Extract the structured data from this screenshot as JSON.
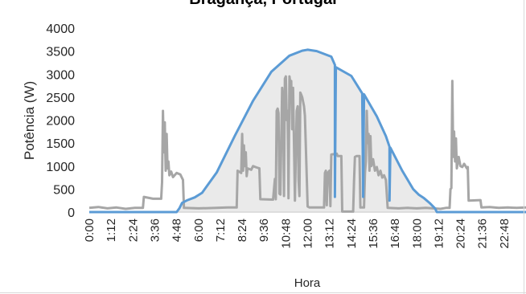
{
  "chart_data": {
    "type": "line",
    "title": "Bragança, Portugal",
    "xlabel": "Hora",
    "ylabel": "Potência (W)",
    "ylim": [
      0,
      4000
    ],
    "yticks": [
      0,
      500,
      1000,
      1500,
      2000,
      2500,
      3000,
      3500,
      4000
    ],
    "x_range_hours": [
      0,
      24
    ],
    "xtick_labels": [
      "0:00",
      "1:12",
      "2:24",
      "3:36",
      "4:48",
      "6:00",
      "7:12",
      "8:24",
      "9:36",
      "10:48",
      "12:00",
      "13:12",
      "14:24",
      "15:36",
      "16:48",
      "18:00",
      "19:12",
      "20:24",
      "21:36",
      "22:48"
    ],
    "grid": "none",
    "legend": "none",
    "series": [
      {
        "color": "#5b9bd5",
        "fill": "#d9d9d9",
        "points": [
          [
            0,
            0
          ],
          [
            4.8,
            0
          ],
          [
            4.95,
            80
          ],
          [
            5.1,
            200
          ],
          [
            5.4,
            260
          ],
          [
            5.8,
            320
          ],
          [
            6.2,
            420
          ],
          [
            7,
            860
          ],
          [
            8,
            1660
          ],
          [
            9,
            2420
          ],
          [
            10,
            3050
          ],
          [
            11,
            3400
          ],
          [
            11.7,
            3510
          ],
          [
            12,
            3530
          ],
          [
            12.5,
            3500
          ],
          [
            13.3,
            3380
          ],
          [
            13.5,
            3200
          ],
          [
            13.5,
            330
          ],
          [
            13.55,
            3150
          ],
          [
            14.4,
            2960
          ],
          [
            15,
            2580
          ],
          [
            15.05,
            330
          ],
          [
            15.1,
            2560
          ],
          [
            15.8,
            2080
          ],
          [
            16.3,
            1650
          ],
          [
            16.5,
            1420
          ],
          [
            16.5,
            250
          ],
          [
            16.55,
            1400
          ],
          [
            17.2,
            900
          ],
          [
            17.8,
            500
          ],
          [
            18.1,
            380
          ],
          [
            18.4,
            300
          ],
          [
            18.7,
            200
          ],
          [
            19,
            80
          ],
          [
            19.1,
            0
          ],
          [
            24,
            0
          ]
        ]
      },
      {
        "color": "#a6a6a6",
        "points": [
          [
            0,
            90
          ],
          [
            0.5,
            110
          ],
          [
            1,
            80
          ],
          [
            1.5,
            100
          ],
          [
            2,
            70
          ],
          [
            2.5,
            90
          ],
          [
            2.95,
            90
          ],
          [
            3,
            330
          ],
          [
            3.5,
            290
          ],
          [
            3.95,
            290
          ],
          [
            4,
            650
          ],
          [
            4.05,
            2200
          ],
          [
            4.1,
            1300
          ],
          [
            4.15,
            1950
          ],
          [
            4.2,
            900
          ],
          [
            4.25,
            1700
          ],
          [
            4.3,
            950
          ],
          [
            4.35,
            1100
          ],
          [
            4.4,
            800
          ],
          [
            4.5,
            880
          ],
          [
            4.6,
            760
          ],
          [
            4.8,
            850
          ],
          [
            5.0,
            820
          ],
          [
            5.15,
            700
          ],
          [
            5.2,
            90
          ],
          [
            6,
            80
          ],
          [
            7,
            90
          ],
          [
            7.6,
            100
          ],
          [
            8.1,
            100
          ],
          [
            8.15,
            900
          ],
          [
            8.35,
            850
          ],
          [
            8.4,
            1700
          ],
          [
            8.45,
            900
          ],
          [
            8.5,
            1450
          ],
          [
            8.55,
            1000
          ],
          [
            8.6,
            1300
          ],
          [
            8.65,
            780
          ],
          [
            8.7,
            950
          ],
          [
            8.9,
            920
          ],
          [
            9,
            1000
          ],
          [
            9.2,
            970
          ],
          [
            9.35,
            950
          ],
          [
            9.4,
            280
          ],
          [
            10.1,
            270
          ],
          [
            10.2,
            720
          ],
          [
            10.25,
            280
          ],
          [
            10.3,
            2200
          ],
          [
            10.35,
            2250
          ],
          [
            10.4,
            2150
          ],
          [
            10.45,
            400
          ],
          [
            10.5,
            380
          ],
          [
            10.6,
            2700
          ],
          [
            10.65,
            2400
          ],
          [
            10.7,
            350
          ],
          [
            10.75,
            2900
          ],
          [
            10.8,
            2950
          ],
          [
            10.85,
            2000
          ],
          [
            10.9,
            2200
          ],
          [
            10.95,
            300
          ],
          [
            11,
            2950
          ],
          [
            11.05,
            2800
          ],
          [
            11.1,
            2850
          ],
          [
            11.15,
            1800
          ],
          [
            11.2,
            2700
          ],
          [
            11.3,
            250
          ],
          [
            11.4,
            2200
          ],
          [
            11.45,
            2300
          ],
          [
            11.5,
            700
          ],
          [
            11.55,
            350
          ],
          [
            11.6,
            2600
          ],
          [
            11.65,
            2550
          ],
          [
            11.7,
            2500
          ],
          [
            11.8,
            2300
          ],
          [
            11.85,
            2100
          ],
          [
            12.0,
            120
          ],
          [
            12.1,
            100
          ],
          [
            12.9,
            100
          ],
          [
            12.95,
            850
          ],
          [
            13.0,
            900
          ],
          [
            13.05,
            150
          ],
          [
            13.1,
            850
          ],
          [
            13.2,
            900
          ],
          [
            13.25,
            130
          ],
          [
            13.3,
            1250
          ],
          [
            13.6,
            1270
          ],
          [
            13.65,
            1220
          ],
          [
            13.85,
            1220
          ],
          [
            13.9,
            10
          ],
          [
            14.5,
            10
          ],
          [
            14.55,
            680
          ],
          [
            14.6,
            1200
          ],
          [
            14.7,
            1220
          ],
          [
            14.85,
            1220
          ],
          [
            14.9,
            100
          ],
          [
            15.1,
            100
          ],
          [
            15.15,
            850
          ],
          [
            15.2,
            1100
          ],
          [
            15.25,
            2200
          ],
          [
            15.3,
            1500
          ],
          [
            15.35,
            1700
          ],
          [
            15.4,
            900
          ],
          [
            15.45,
            1650
          ],
          [
            15.5,
            1000
          ],
          [
            15.6,
            1150
          ],
          [
            15.7,
            900
          ],
          [
            15.8,
            980
          ],
          [
            15.9,
            800
          ],
          [
            16.0,
            900
          ],
          [
            16.1,
            750
          ],
          [
            16.2,
            800
          ],
          [
            16.3,
            700
          ],
          [
            16.4,
            90
          ],
          [
            17,
            80
          ],
          [
            17.5,
            90
          ],
          [
            18,
            80
          ],
          [
            18.5,
            90
          ],
          [
            18.9,
            80
          ],
          [
            19.3,
            70
          ],
          [
            19.6,
            90
          ],
          [
            19.8,
            90
          ],
          [
            19.85,
            500
          ],
          [
            19.9,
            520
          ],
          [
            19.95,
            2850
          ],
          [
            20.0,
            1200
          ],
          [
            20.05,
            1750
          ],
          [
            20.1,
            1100
          ],
          [
            20.15,
            1600
          ],
          [
            20.2,
            950
          ],
          [
            20.3,
            1200
          ],
          [
            20.4,
            1000
          ],
          [
            20.5,
            980
          ],
          [
            20.6,
            1050
          ],
          [
            20.75,
            950
          ],
          [
            20.8,
            980
          ],
          [
            20.85,
            250
          ],
          [
            21.5,
            260
          ],
          [
            21.55,
            100
          ],
          [
            22,
            110
          ],
          [
            22.5,
            90
          ],
          [
            23,
            100
          ],
          [
            23.5,
            90
          ],
          [
            24,
            100
          ]
        ]
      }
    ]
  }
}
